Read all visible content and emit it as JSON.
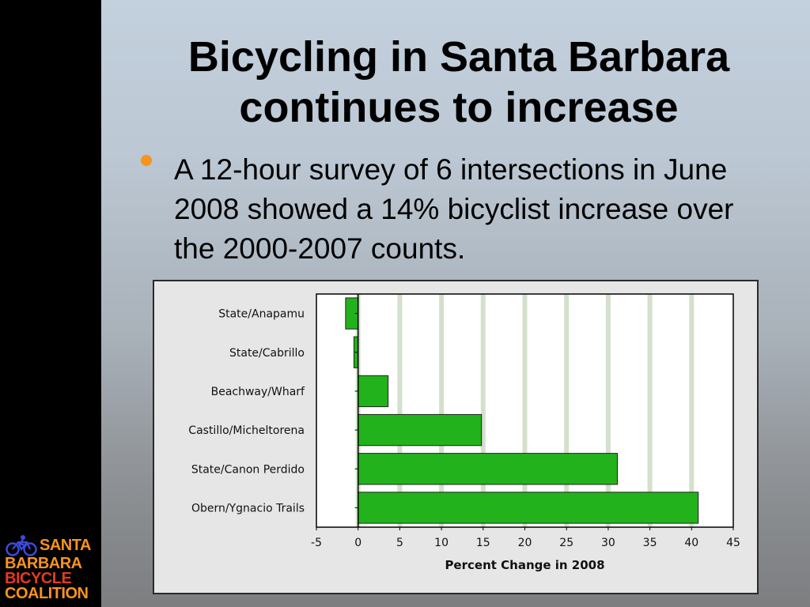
{
  "slide": {
    "title_line1": "Bicycling in Santa Barbara",
    "title_line2": "continues to increase",
    "bullet": "A 12-hour survey of 6 intersections in June 2008 showed a 14% bicyclist increase over the 2000-2007 counts."
  },
  "logo": {
    "line1": "SANTA",
    "line2": "BARBARA",
    "line3": "BICYCLE",
    "line4": "COALITION"
  },
  "colors": {
    "bar": "#22b21c",
    "gridline": "#d4e0cc",
    "bullet": "#f7941d"
  },
  "chart_data": {
    "type": "bar",
    "orientation": "horizontal",
    "categories": [
      "State/Anapamu",
      "State/Cabrillo",
      "Beachway/Wharf",
      "Castillo/Micheltorena",
      "State/Canon Perdido",
      "Obern/Ygnacio Trails"
    ],
    "values": [
      -1.5,
      -0.5,
      3.6,
      14.8,
      31.1,
      40.8
    ],
    "xlabel": "Percent Change in 2008",
    "xlim": [
      -5,
      45
    ],
    "xticks": [
      -5,
      0,
      5,
      10,
      15,
      20,
      25,
      30,
      35,
      40,
      45
    ],
    "grid": true
  }
}
